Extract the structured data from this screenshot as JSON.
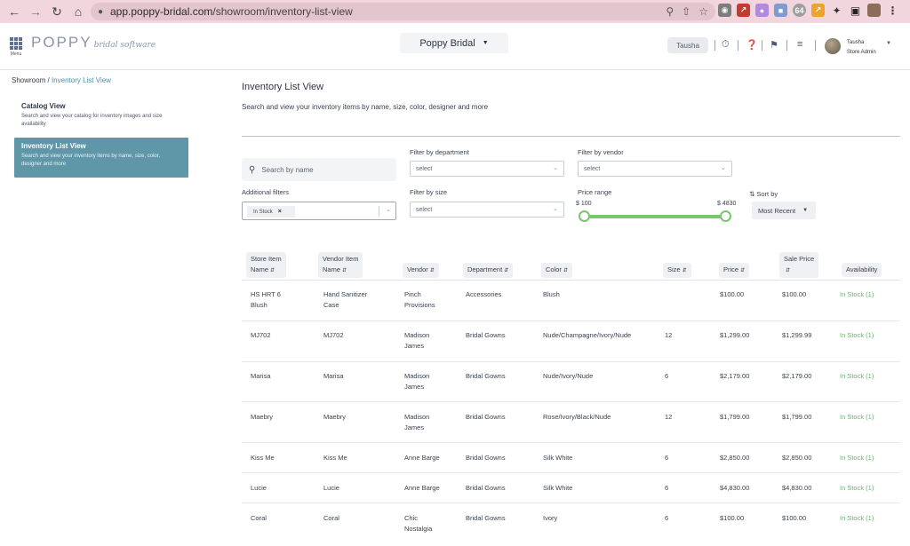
{
  "browser": {
    "url_host": "app.poppy-bridal.com",
    "url_path": "/showroom/inventory-list-view"
  },
  "app": {
    "menu_label": "Menu",
    "logo": "POPPY",
    "logo_sub": "bridal software",
    "store_name": "Poppy Bridal",
    "user_short": "Tausha",
    "user_name": "Tausha",
    "user_role": "Store Admin"
  },
  "breadcrumb": {
    "root": "Showroom",
    "sep": "/",
    "current": "Inventory List View"
  },
  "sidebar": {
    "items": [
      {
        "title": "Catalog View",
        "desc": "Search and view your catalog for inventory images and size availability"
      },
      {
        "title": "Inventory List View",
        "desc": "Search and view your inventory items by name, size, color, designer and more"
      }
    ]
  },
  "page": {
    "title": "Inventory List View",
    "subtitle": "Search and view your inventory items by name, size, color, designer and more"
  },
  "filters": {
    "search_placeholder": "Search by name",
    "department_label": "Filter by department",
    "department_value": "select",
    "vendor_label": "Filter by vendor",
    "vendor_value": "select",
    "additional_label": "Additional filters",
    "additional_chip": "In Stock",
    "size_label": "Filter by size",
    "size_value": "select",
    "price_label": "Price range",
    "price_min": "$ 100",
    "price_max": "$ 4830",
    "sort_label": "Sort by",
    "sort_value": "Most Recent"
  },
  "table": {
    "headers": [
      {
        "l1": "Store Item",
        "l2": "Name"
      },
      {
        "l1": "Vendor Item",
        "l2": "Name"
      },
      {
        "l1": "",
        "l2": "Vendor"
      },
      {
        "l1": "",
        "l2": "Department"
      },
      {
        "l1": "",
        "l2": "Color"
      },
      {
        "l1": "",
        "l2": "Size"
      },
      {
        "l1": "",
        "l2": "Price"
      },
      {
        "l1": "Sale Price",
        "l2": ""
      },
      {
        "l1": "",
        "l2": "Availability"
      }
    ],
    "rows": [
      {
        "store": [
          "HS HRT 6",
          "Blush"
        ],
        "vendor_item": [
          "Hand Sanitizer",
          "Case"
        ],
        "vendor": [
          "Pinch",
          "Provisions"
        ],
        "dept": "Accessories",
        "color": "Blush",
        "size": "",
        "price": "$100.00",
        "sale": "$100.00",
        "avail": "In Stock (1)"
      },
      {
        "store": [
          "MJ702",
          ""
        ],
        "vendor_item": [
          "MJ702",
          ""
        ],
        "vendor": [
          "Madison",
          "James"
        ],
        "dept": "Bridal Gowns",
        "color": "Nude/Champagne/Ivory/Nude",
        "size": "12",
        "price": "$1,299.00",
        "sale": "$1,299.99",
        "avail": "In Stock (1)"
      },
      {
        "store": [
          "Marisa",
          ""
        ],
        "vendor_item": [
          "Marisa",
          ""
        ],
        "vendor": [
          "Madison",
          "James"
        ],
        "dept": "Bridal Gowns",
        "color": "Nude/Ivory/Nude",
        "size": "6",
        "price": "$2,179.00",
        "sale": "$2,179.00",
        "avail": "In Stock (1)"
      },
      {
        "store": [
          "Maebry",
          ""
        ],
        "vendor_item": [
          "Maebry",
          ""
        ],
        "vendor": [
          "Madison",
          "James"
        ],
        "dept": "Bridal Gowns",
        "color": "Rose/Ivory/Black/Nude",
        "size": "12",
        "price": "$1,799.00",
        "sale": "$1,799.00",
        "avail": "In Stock (1)"
      },
      {
        "store": [
          "Kiss Me",
          ""
        ],
        "vendor_item": [
          "Kiss Me",
          ""
        ],
        "vendor": [
          "Anne Barge",
          ""
        ],
        "dept": "Bridal Gowns",
        "color": "Silk White",
        "size": "6",
        "price": "$2,850.00",
        "sale": "$2,850.00",
        "avail": "In Stock (1)"
      },
      {
        "store": [
          "Lucie",
          ""
        ],
        "vendor_item": [
          "Lucie",
          ""
        ],
        "vendor": [
          "Anne Barge",
          ""
        ],
        "dept": "Bridal Gowns",
        "color": "Silk White",
        "size": "6",
        "price": "$4,830.00",
        "sale": "$4,830.00",
        "avail": "In Stock (1)"
      },
      {
        "store": [
          "Coral",
          ""
        ],
        "vendor_item": [
          "Coral",
          ""
        ],
        "vendor": [
          "Chic",
          "Nostalgia"
        ],
        "dept": "Bridal Gowns",
        "color": "Ivory",
        "size": "6",
        "price": "$100.00",
        "sale": "$100.00",
        "avail": "In Stock (1)"
      }
    ]
  },
  "colors": {
    "accent": "#5f97a8",
    "instock": "#65b56a",
    "slider": "#79c66e",
    "chrome": "#f2d6dd"
  }
}
